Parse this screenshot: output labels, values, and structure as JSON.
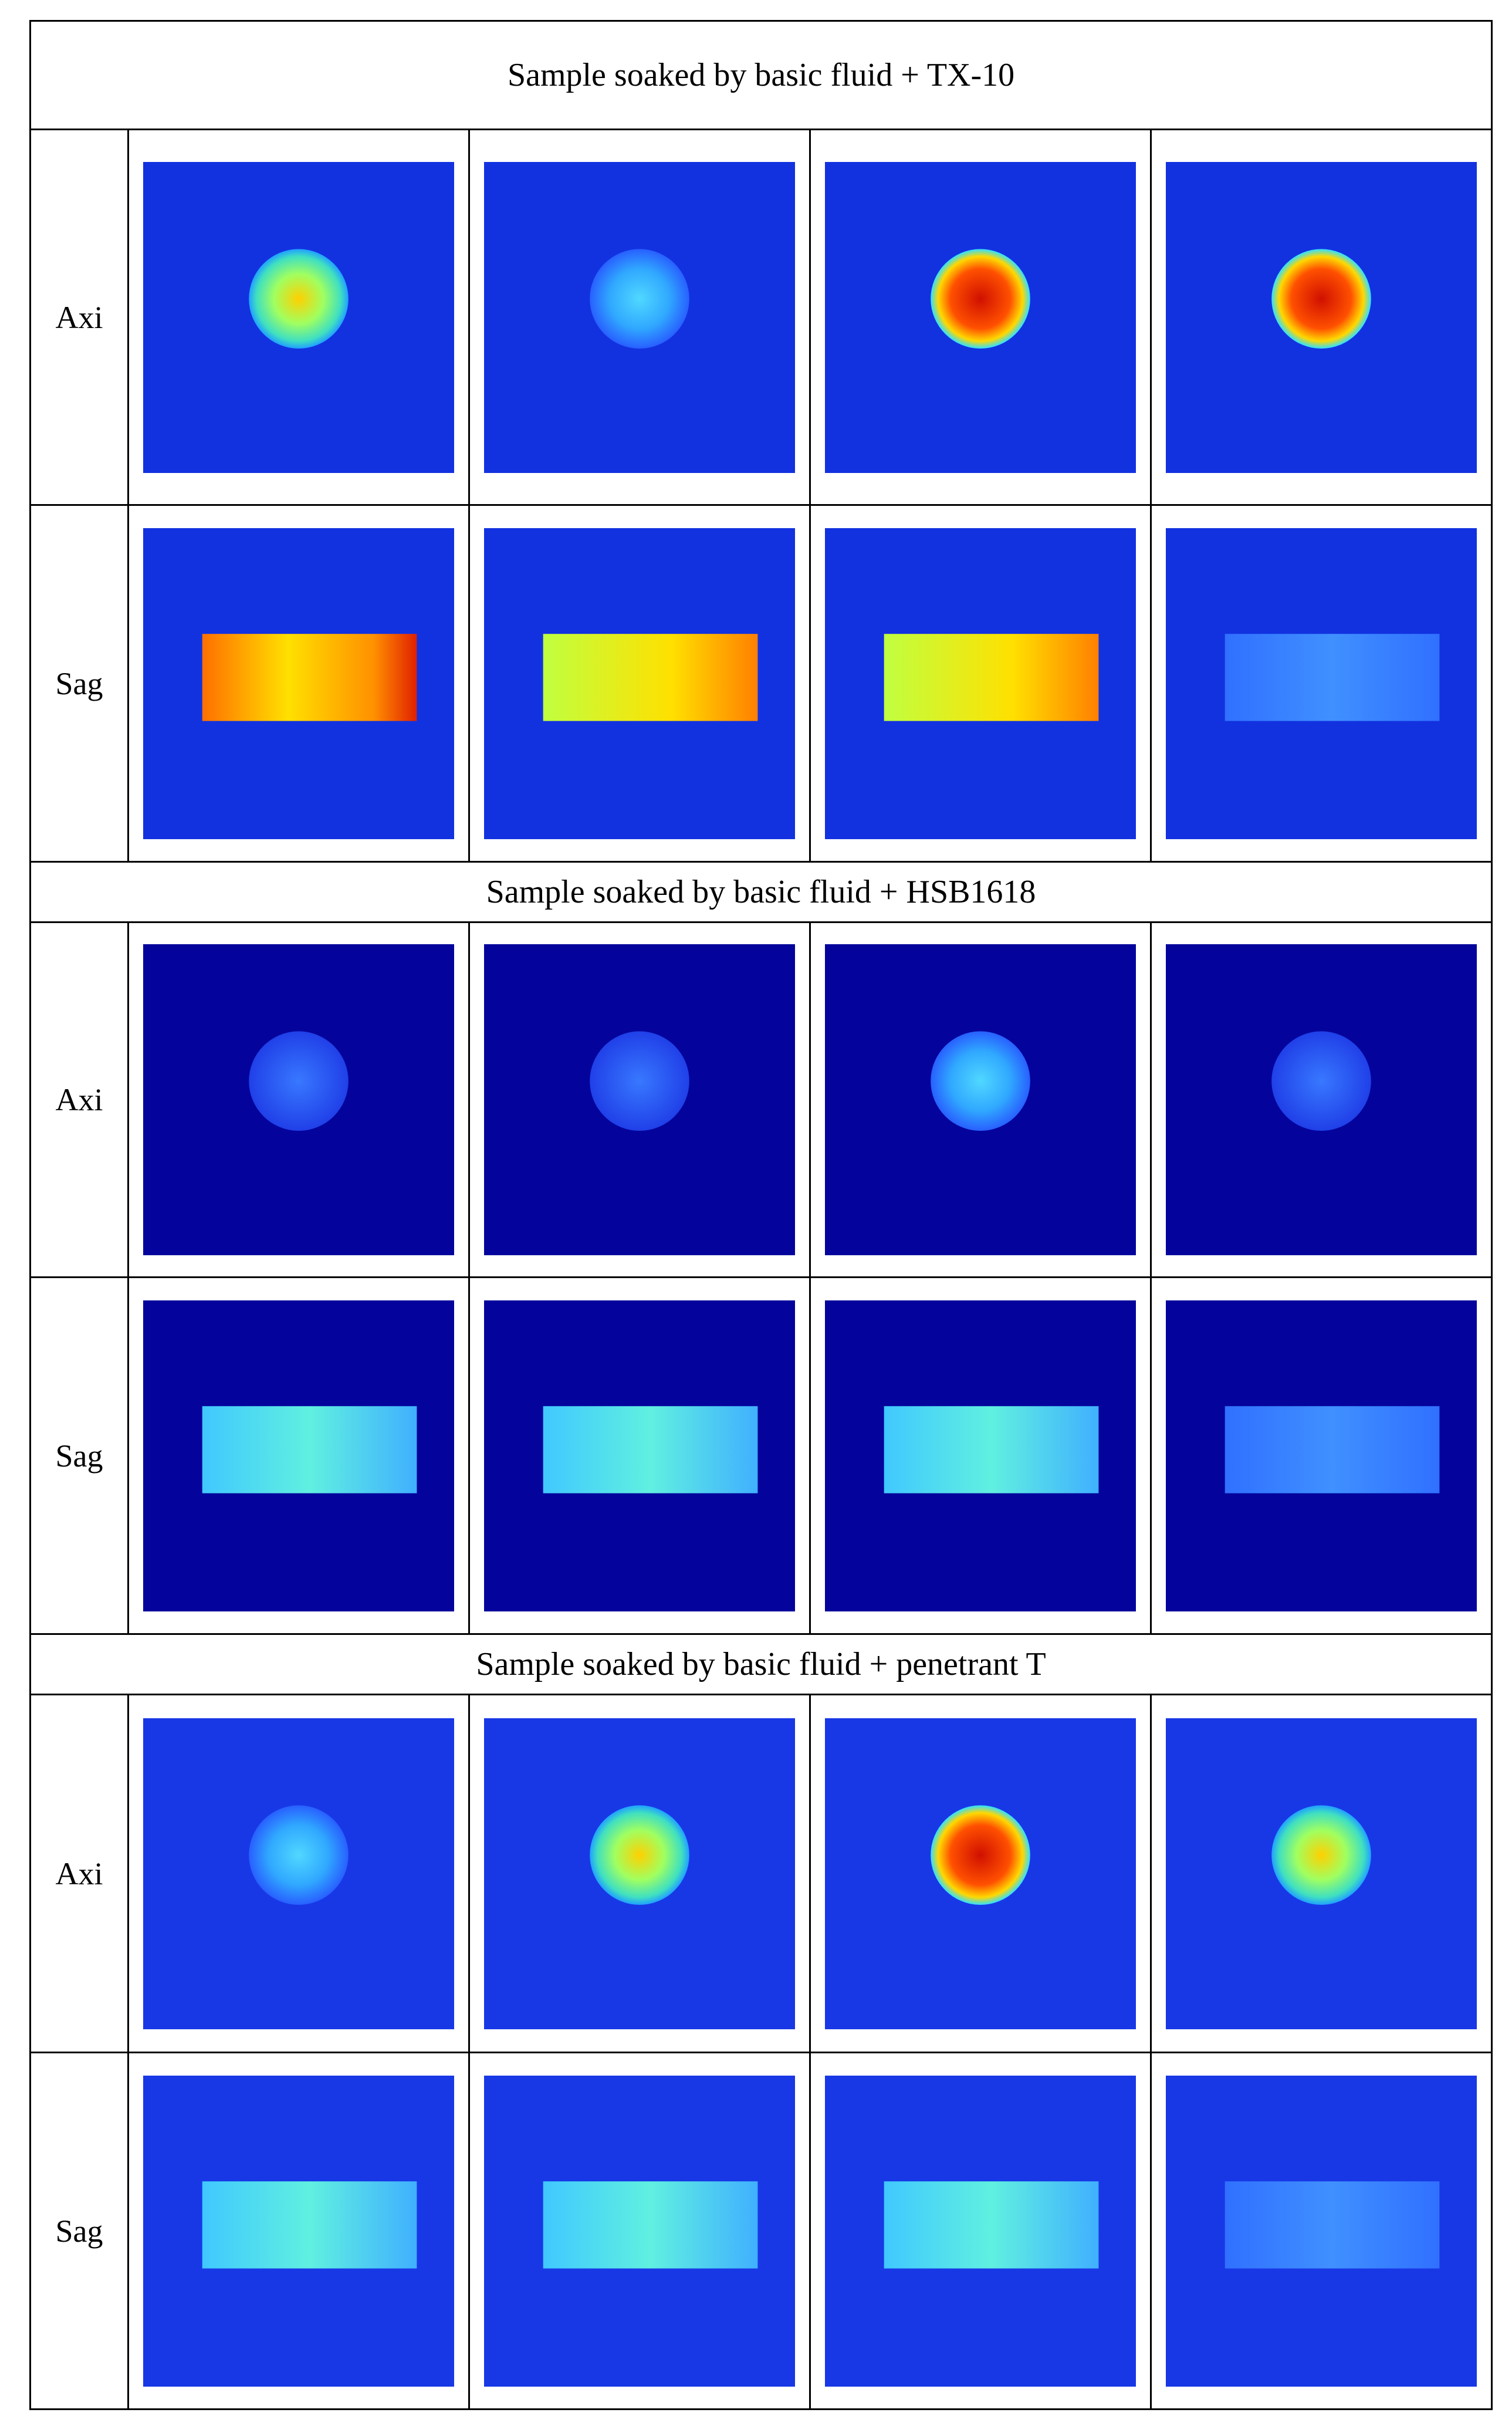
{
  "sections": [
    {
      "title": "Sample soaked by basic fluid + TX-10",
      "rows": [
        {
          "label": "Axi"
        },
        {
          "label": "Sag"
        }
      ]
    },
    {
      "title": "Sample soaked by basic fluid + HSB1618",
      "rows": [
        {
          "label": "Axi"
        },
        {
          "label": "Sag"
        }
      ]
    },
    {
      "title": "Sample soaked by basic fluid + penetrant T",
      "rows": [
        {
          "label": "Axi"
        },
        {
          "label": "Sag"
        }
      ]
    }
  ]
}
